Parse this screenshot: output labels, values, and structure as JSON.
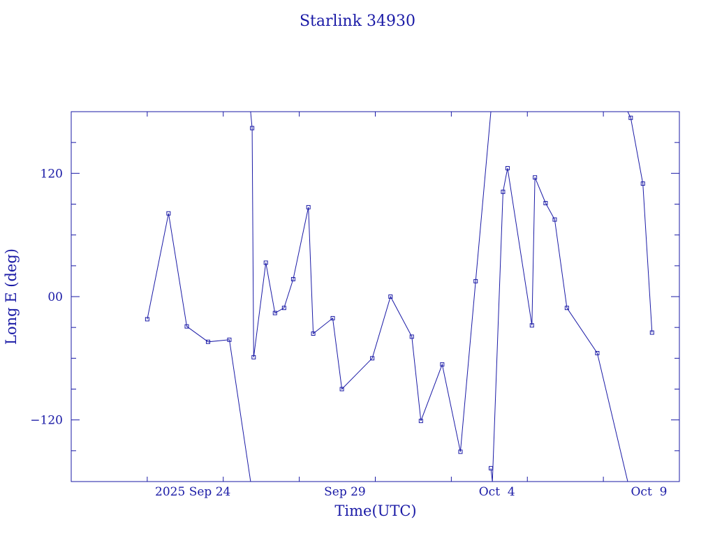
{
  "chart_data": {
    "type": "line",
    "title": "Starlink 34930",
    "xlabel": "Time(UTC)",
    "ylabel": "Long E (deg)",
    "ylim": [
      -180,
      180
    ],
    "xlim": [
      "2025-09-20",
      "2025-10-10"
    ],
    "grid": false,
    "legend": "none",
    "color": "#1a1aa6",
    "x_ticks": [
      {
        "date": "2025-09-24",
        "label": "2025 Sep 24"
      },
      {
        "date": "2025-09-29",
        "label": "Sep 29"
      },
      {
        "date": "2025-10-04",
        "label": "Oct  4"
      },
      {
        "date": "2025-10-09",
        "label": "Oct  9"
      }
    ],
    "y_ticks": [
      {
        "value": 120,
        "label": "120"
      },
      {
        "value": 0,
        "label": "00"
      },
      {
        "value": -120,
        "label": "−120"
      }
    ],
    "series": [
      {
        "points": [
          {
            "x": "2025-09-22 12:00",
            "y": -22
          },
          {
            "x": "2025-09-23 04:48",
            "y": 81
          },
          {
            "x": "2025-09-23 19:12",
            "y": -29
          },
          {
            "x": "2025-09-24 12:00",
            "y": -44
          },
          {
            "x": "2025-09-25 04:48",
            "y": -42
          },
          {
            "x": "2025-09-25 21:36",
            "y": -180
          },
          {
            "x": "2025-09-25 21:36",
            "y": 180
          },
          {
            "x": "2025-09-25 22:48",
            "y": 164
          },
          {
            "x": "2025-09-26 00:00",
            "y": -59
          },
          {
            "x": "2025-09-26 09:36",
            "y": 33
          },
          {
            "x": "2025-09-26 16:48",
            "y": -16
          },
          {
            "x": "2025-09-27 00:00",
            "y": -11
          },
          {
            "x": "2025-09-27 07:12",
            "y": 17
          },
          {
            "x": "2025-09-27 19:12",
            "y": 87
          },
          {
            "x": "2025-09-27 23:00",
            "y": -36
          },
          {
            "x": "2025-09-28 14:24",
            "y": -21
          },
          {
            "x": "2025-09-28 21:36",
            "y": -90
          },
          {
            "x": "2025-09-29 21:36",
            "y": -60
          },
          {
            "x": "2025-09-30 12:00",
            "y": 0
          },
          {
            "x": "2025-10-01 04:48",
            "y": -39
          },
          {
            "x": "2025-10-01 12:00",
            "y": -121
          },
          {
            "x": "2025-10-02 04:48",
            "y": -66
          },
          {
            "x": "2025-10-02 19:12",
            "y": -151
          },
          {
            "x": "2025-10-03 07:12",
            "y": 15
          },
          {
            "x": "2025-10-03 19:12",
            "y": 180
          },
          {
            "x": "2025-10-03 19:12",
            "y": -167
          },
          {
            "x": "2025-10-03 20:24",
            "y": -180
          },
          {
            "x": "2025-10-04 04:48",
            "y": 102
          },
          {
            "x": "2025-10-04 08:24",
            "y": 125
          },
          {
            "x": "2025-10-05 03:36",
            "y": -28
          },
          {
            "x": "2025-10-05 06:00",
            "y": 116
          },
          {
            "x": "2025-10-05 14:24",
            "y": 91
          },
          {
            "x": "2025-10-05 21:36",
            "y": 75
          },
          {
            "x": "2025-10-06 07:12",
            "y": -11
          },
          {
            "x": "2025-10-07 07:12",
            "y": -55
          },
          {
            "x": "2025-10-08 07:12",
            "y": -180
          },
          {
            "x": "2025-10-08 07:12",
            "y": 180
          },
          {
            "x": "2025-10-08 09:36",
            "y": 174
          },
          {
            "x": "2025-10-08 19:12",
            "y": 110
          },
          {
            "x": "2025-10-09 02:24",
            "y": -35
          }
        ]
      }
    ]
  }
}
